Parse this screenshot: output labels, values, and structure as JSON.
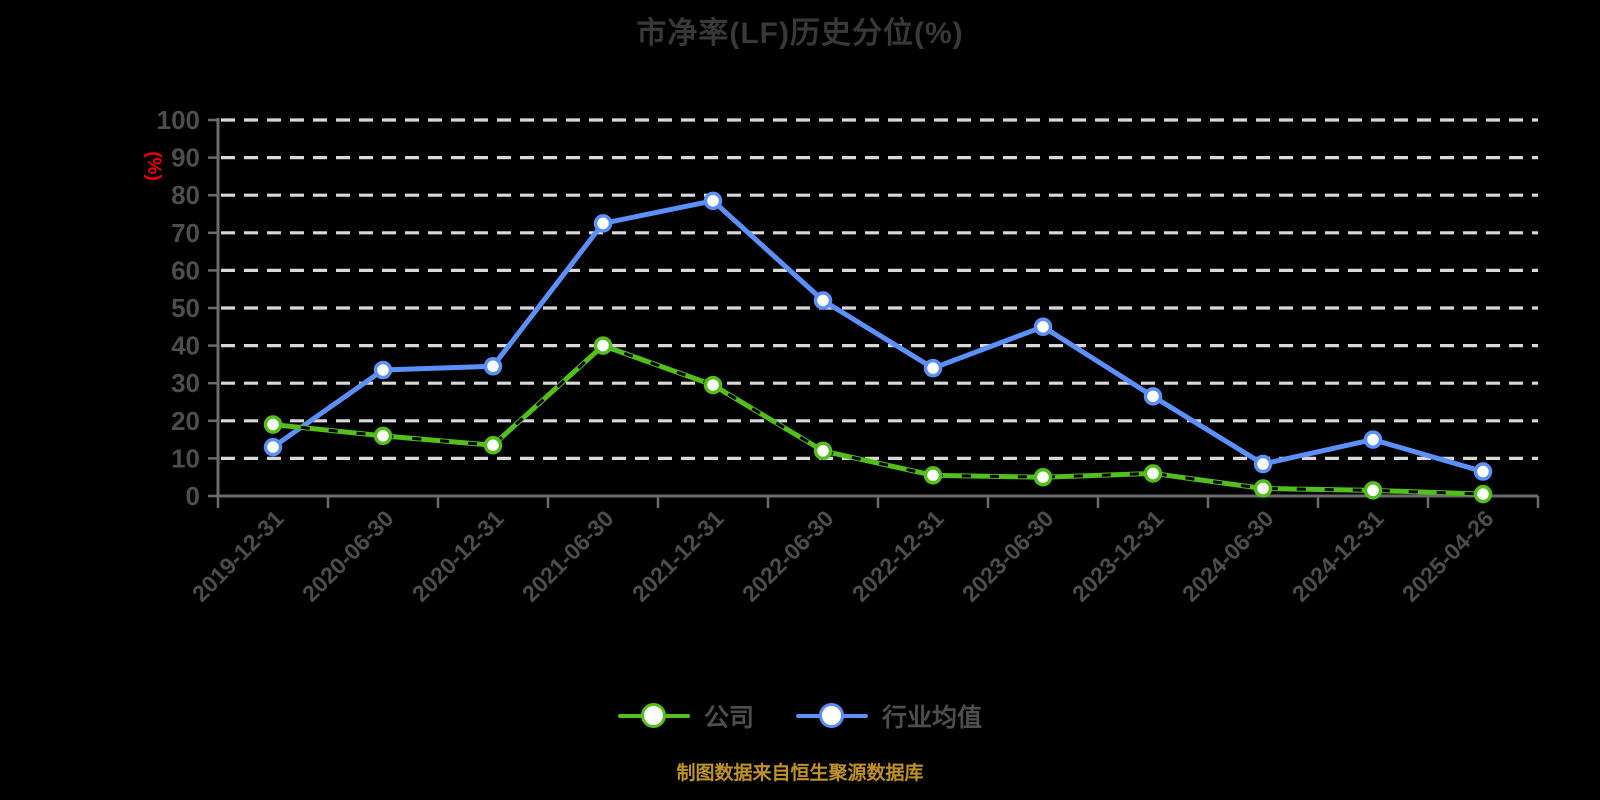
{
  "chart_data": {
    "type": "line",
    "title": "市净率(LF)历史分位(%)",
    "ylabel": "(%)",
    "xlabel": "",
    "ylim": [
      0,
      100
    ],
    "ytick_step": 10,
    "grid": "dashed-horizontal",
    "legend_position": "bottom",
    "categories": [
      "2019-12-31",
      "2020-06-30",
      "2020-12-31",
      "2021-06-30",
      "2021-12-31",
      "2022-06-30",
      "2022-12-31",
      "2023-06-30",
      "2023-12-31",
      "2024-06-30",
      "2024-12-31",
      "2025-04-26"
    ],
    "series": [
      {
        "name": "公司",
        "color": "#52bf1a",
        "marker": "circle-white-fill",
        "dash_overlay": true,
        "values": [
          19,
          16,
          13.5,
          40,
          29.5,
          12,
          5.5,
          5,
          6,
          2,
          1.5,
          0.5
        ]
      },
      {
        "name": "行业均值",
        "color": "#5b8ff9",
        "marker": "circle-white-fill",
        "dash_overlay": false,
        "values": [
          13,
          33.5,
          34.5,
          72.5,
          78.5,
          52,
          34,
          45,
          26.5,
          8.5,
          15,
          6.5
        ]
      }
    ],
    "colors": {
      "background": "#000000",
      "title_text": "#383838",
      "axis_line": "#6b6b6b",
      "tick_label": "#4d4d4d",
      "gridline": "#d8d8d8",
      "unit_label": "#f00000",
      "footer_text": "#bf9226"
    }
  },
  "footer": {
    "text": "制图数据来自恒生聚源数据库"
  }
}
